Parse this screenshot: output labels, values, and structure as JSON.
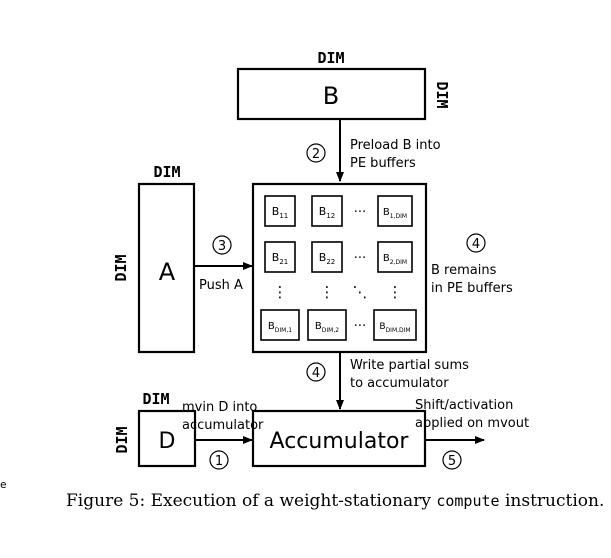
{
  "diagram": {
    "dim_label": "DIM",
    "box_b": "B",
    "box_a": "A",
    "box_d": "D",
    "box_accumulator": "Accumulator",
    "steps": [
      "1",
      "2",
      "3",
      "4",
      "4",
      "5"
    ],
    "notes": {
      "preload_b": [
        "Preload B into",
        "PE buffers"
      ],
      "push_a": "Push A",
      "b_remains": [
        "B remains",
        "in PE buffers"
      ],
      "write_partial": [
        "Write partial sums",
        "to accumulator"
      ],
      "mvin_d": [
        "mvin D into",
        "accumulator"
      ],
      "shift_activation": [
        "Shift/activation",
        "applied on mvout"
      ]
    },
    "pe_cells": [
      {
        "base": "B",
        "sub": "11"
      },
      {
        "base": "B",
        "sub": "12"
      },
      {
        "base": "B",
        "sub": "1,DIM"
      },
      {
        "base": "B",
        "sub": "21"
      },
      {
        "base": "B",
        "sub": "22"
      },
      {
        "base": "B",
        "sub": "2,DIM"
      },
      {
        "base": "B",
        "sub": "DIM,1"
      },
      {
        "base": "B",
        "sub": "DIM,2"
      },
      {
        "base": "B",
        "sub": "DIM,DIM"
      }
    ],
    "ellipsis_h": "···",
    "ellipsis_v": "⋮",
    "ellipsis_d": "⋱"
  },
  "caption": {
    "prefix": "Figure 5:  Execution of a weight-stationary",
    "code": "compute",
    "suffix": "instruction."
  },
  "edge_fragment": "e"
}
